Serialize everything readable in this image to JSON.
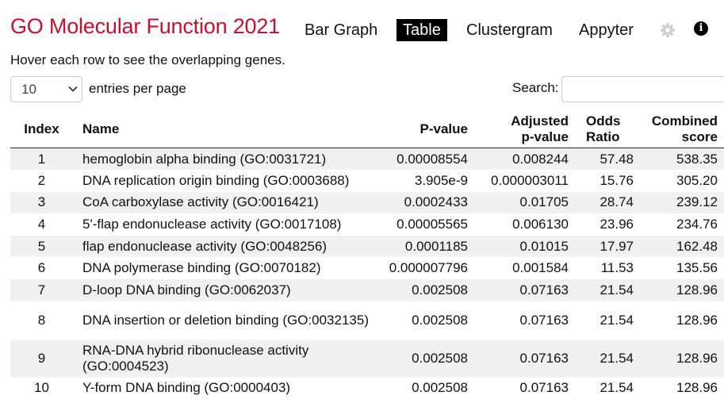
{
  "title": "GO Molecular Function 2021",
  "nav": {
    "bar_graph": "Bar Graph",
    "table": "Table",
    "clustergram": "Clustergram",
    "appyter": "Appyter"
  },
  "hover_note": "Hover each row to see the overlapping genes.",
  "entries": {
    "selected": "10",
    "label": "entries per page"
  },
  "search": {
    "label": "Search:",
    "value": ""
  },
  "table": {
    "headers": {
      "index": "Index",
      "name": "Name",
      "pvalue": "P-value",
      "adjusted": "Adjusted p-value",
      "odds": "Odds Ratio",
      "combined": "Combined score"
    },
    "rows": [
      {
        "index": "1",
        "name": "hemoglobin alpha binding (GO:0031721)",
        "pvalue": "0.00008554",
        "adjusted": "0.008244",
        "odds": "57.48",
        "combined": "538.35"
      },
      {
        "index": "2",
        "name": "DNA replication origin binding (GO:0003688)",
        "pvalue": "3.905e-9",
        "adjusted": "0.000003011",
        "odds": "15.76",
        "combined": "305.20"
      },
      {
        "index": "3",
        "name": "CoA carboxylase activity (GO:0016421)",
        "pvalue": "0.0002433",
        "adjusted": "0.01705",
        "odds": "28.74",
        "combined": "239.12"
      },
      {
        "index": "4",
        "name": "5'-flap endonuclease activity (GO:0017108)",
        "pvalue": "0.00005565",
        "adjusted": "0.006130",
        "odds": "23.96",
        "combined": "234.76"
      },
      {
        "index": "5",
        "name": "flap endonuclease activity (GO:0048256)",
        "pvalue": "0.0001185",
        "adjusted": "0.01015",
        "odds": "17.97",
        "combined": "162.48"
      },
      {
        "index": "6",
        "name": "DNA polymerase binding (GO:0070182)",
        "pvalue": "0.000007796",
        "adjusted": "0.001584",
        "odds": "11.53",
        "combined": "135.56"
      },
      {
        "index": "7",
        "name": "D-loop DNA binding (GO:0062037)",
        "pvalue": "0.002508",
        "adjusted": "0.07163",
        "odds": "21.54",
        "combined": "128.96"
      },
      {
        "index": "8",
        "name": "DNA insertion or deletion binding (GO:0032135)",
        "pvalue": "0.002508",
        "adjusted": "0.07163",
        "odds": "21.54",
        "combined": "128.96"
      },
      {
        "index": "9",
        "name": "RNA-DNA hybrid ribonuclease activity (GO:0004523)",
        "pvalue": "0.002508",
        "adjusted": "0.07163",
        "odds": "21.54",
        "combined": "128.96"
      },
      {
        "index": "10",
        "name": "Y-form DNA binding (GO:0000403)",
        "pvalue": "0.002508",
        "adjusted": "0.07163",
        "odds": "21.54",
        "combined": "128.96"
      }
    ]
  },
  "colors": {
    "title": "#c8102e",
    "stripe": "#f0f0f0",
    "active_tab_bg": "#000000"
  },
  "icons": {
    "settings": "gear-icon",
    "info": "info-icon"
  }
}
